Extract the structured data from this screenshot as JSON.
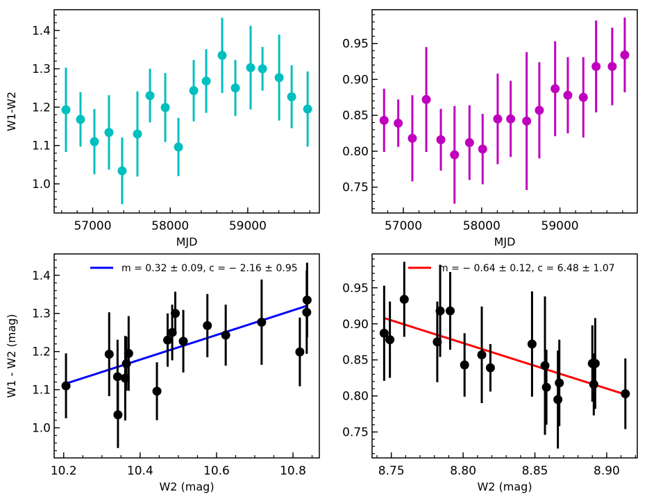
{
  "chart_data": [
    {
      "type": "scatter",
      "xlabel": "MJD",
      "ylabel": "W1-W2",
      "xlim": [
        56503,
        59923
      ],
      "ylim": [
        0.924,
        1.454
      ],
      "xticks": [
        57000,
        58000,
        59000
      ],
      "xtick_labels": [
        "57000",
        "58000",
        "59000"
      ],
      "yticks": [
        1.0,
        1.1,
        1.2,
        1.3,
        1.4
      ],
      "ytick_labels": [
        "1.0",
        "1.1",
        "1.2",
        "1.3",
        "1.4"
      ],
      "x_minor_step": 200,
      "y_minor_step": 0.02,
      "grid": false,
      "color": "#00bfbf",
      "x": [
        56655,
        56843,
        57022,
        57210,
        57380,
        57577,
        57739,
        57936,
        58106,
        58303,
        58464,
        58670,
        58840,
        59037,
        59190,
        59405,
        59566,
        59772
      ],
      "y": [
        1.193,
        1.168,
        1.11,
        1.134,
        1.034,
        1.13,
        1.23,
        1.199,
        1.096,
        1.243,
        1.268,
        1.335,
        1.25,
        1.303,
        1.3,
        1.277,
        1.227,
        1.195
      ],
      "yerr": [
        0.11,
        0.071,
        0.085,
        0.097,
        0.087,
        0.111,
        0.07,
        0.09,
        0.076,
        0.08,
        0.083,
        0.098,
        0.073,
        0.109,
        0.057,
        0.112,
        0.082,
        0.098
      ]
    },
    {
      "type": "scatter",
      "xlabel": "MJD",
      "ylabel": "",
      "xlim": [
        56601,
        59988
      ],
      "ylim": [
        0.714,
        0.997
      ],
      "xticks": [
        57000,
        58000,
        59000
      ],
      "xtick_labels": [
        "57000",
        "58000",
        "59000"
      ],
      "yticks": [
        0.75,
        0.8,
        0.85,
        0.9,
        0.95
      ],
      "ytick_labels": [
        "0.75",
        "0.80",
        "0.85",
        "0.90",
        "0.95"
      ],
      "x_minor_step": 200,
      "y_minor_step": 0.01,
      "grid": false,
      "color": "#bf00bf",
      "x": [
        56754,
        56935,
        57115,
        57293,
        57479,
        57654,
        57845,
        58013,
        58205,
        58371,
        58575,
        58737,
        58939,
        59101,
        59299,
        59462,
        59668,
        59828
      ],
      "y": [
        0.843,
        0.839,
        0.818,
        0.872,
        0.816,
        0.795,
        0.812,
        0.803,
        0.845,
        0.845,
        0.842,
        0.857,
        0.887,
        0.878,
        0.875,
        0.918,
        0.918,
        0.934
      ],
      "yerr": [
        0.044,
        0.033,
        0.06,
        0.073,
        0.043,
        0.068,
        0.052,
        0.049,
        0.063,
        0.053,
        0.096,
        0.067,
        0.066,
        0.053,
        0.056,
        0.064,
        0.054,
        0.052
      ]
    },
    {
      "type": "scatter",
      "xlabel": "W2 (mag)",
      "ylabel": "W1 - W2 (mag)",
      "xlim": [
        10.175,
        10.869
      ],
      "ylim": [
        0.921,
        1.456
      ],
      "xticks": [
        10.2,
        10.4,
        10.6,
        10.8
      ],
      "xtick_labels": [
        "10.2",
        "10.4",
        "10.6",
        "10.8"
      ],
      "yticks": [
        1.0,
        1.1,
        1.2,
        1.3,
        1.4
      ],
      "ytick_labels": [
        "1.0",
        "1.1",
        "1.2",
        "1.3",
        "1.4"
      ],
      "x_minor_step": 0.05,
      "y_minor_step": 0.02,
      "grid": false,
      "color": "#000000",
      "x": [
        10.206,
        10.319,
        10.341,
        10.342,
        10.361,
        10.364,
        10.37,
        10.444,
        10.472,
        10.484,
        10.492,
        10.513,
        10.576,
        10.624,
        10.718,
        10.818,
        10.837,
        10.836
      ],
      "y": [
        1.11,
        1.193,
        1.134,
        1.034,
        1.13,
        1.168,
        1.195,
        1.096,
        1.23,
        1.25,
        1.3,
        1.227,
        1.268,
        1.243,
        1.277,
        1.199,
        1.335,
        1.303
      ],
      "yerr": [
        0.085,
        0.11,
        0.097,
        0.087,
        0.111,
        0.071,
        0.098,
        0.076,
        0.07,
        0.073,
        0.057,
        0.082,
        0.083,
        0.08,
        0.112,
        0.09,
        0.098,
        0.109
      ],
      "fit": {
        "x": [
          10.206,
          10.837
        ],
        "y": [
          1.116,
          1.32
        ],
        "color": "#0000ff",
        "label": "m = 0.32 ± 0.09,  c = − 2.16 ± 0.95"
      },
      "legend": "top-right"
    },
    {
      "type": "scatter",
      "xlabel": "W2 (mag)",
      "ylabel": "",
      "xlim": [
        8.7366,
        8.9213
      ],
      "ylim": [
        0.714,
        0.997
      ],
      "xticks": [
        8.75,
        8.8,
        8.85,
        8.9
      ],
      "xtick_labels": [
        "8.75",
        "8.80",
        "8.85",
        "8.90"
      ],
      "yticks": [
        0.75,
        0.8,
        0.85,
        0.9,
        0.95
      ],
      "ytick_labels": [
        "0.75",
        "0.80",
        "0.85",
        "0.90",
        "0.95"
      ],
      "x_minor_step": 0.01,
      "y_minor_step": 0.01,
      "grid": false,
      "color": "#000000",
      "x": [
        8.745,
        8.749,
        8.759,
        8.782,
        8.784,
        8.791,
        8.801,
        8.813,
        8.819,
        8.848,
        8.857,
        8.858,
        8.866,
        8.867,
        8.89,
        8.892,
        8.891,
        8.913
      ],
      "y": [
        0.887,
        0.878,
        0.934,
        0.875,
        0.918,
        0.918,
        0.843,
        0.857,
        0.839,
        0.872,
        0.842,
        0.812,
        0.795,
        0.818,
        0.845,
        0.845,
        0.816,
        0.803
      ],
      "yerr": [
        0.066,
        0.053,
        0.052,
        0.056,
        0.064,
        0.054,
        0.044,
        0.067,
        0.033,
        0.073,
        0.096,
        0.052,
        0.068,
        0.06,
        0.053,
        0.063,
        0.043,
        0.049
      ],
      "fit": {
        "x": [
          8.745,
          8.913
        ],
        "y": [
          0.908,
          0.802
        ],
        "color": "#ff0000",
        "label": "m = − 0.64 ± 0.12,  c = 6.48 ± 1.07"
      },
      "legend": "top-right"
    }
  ]
}
